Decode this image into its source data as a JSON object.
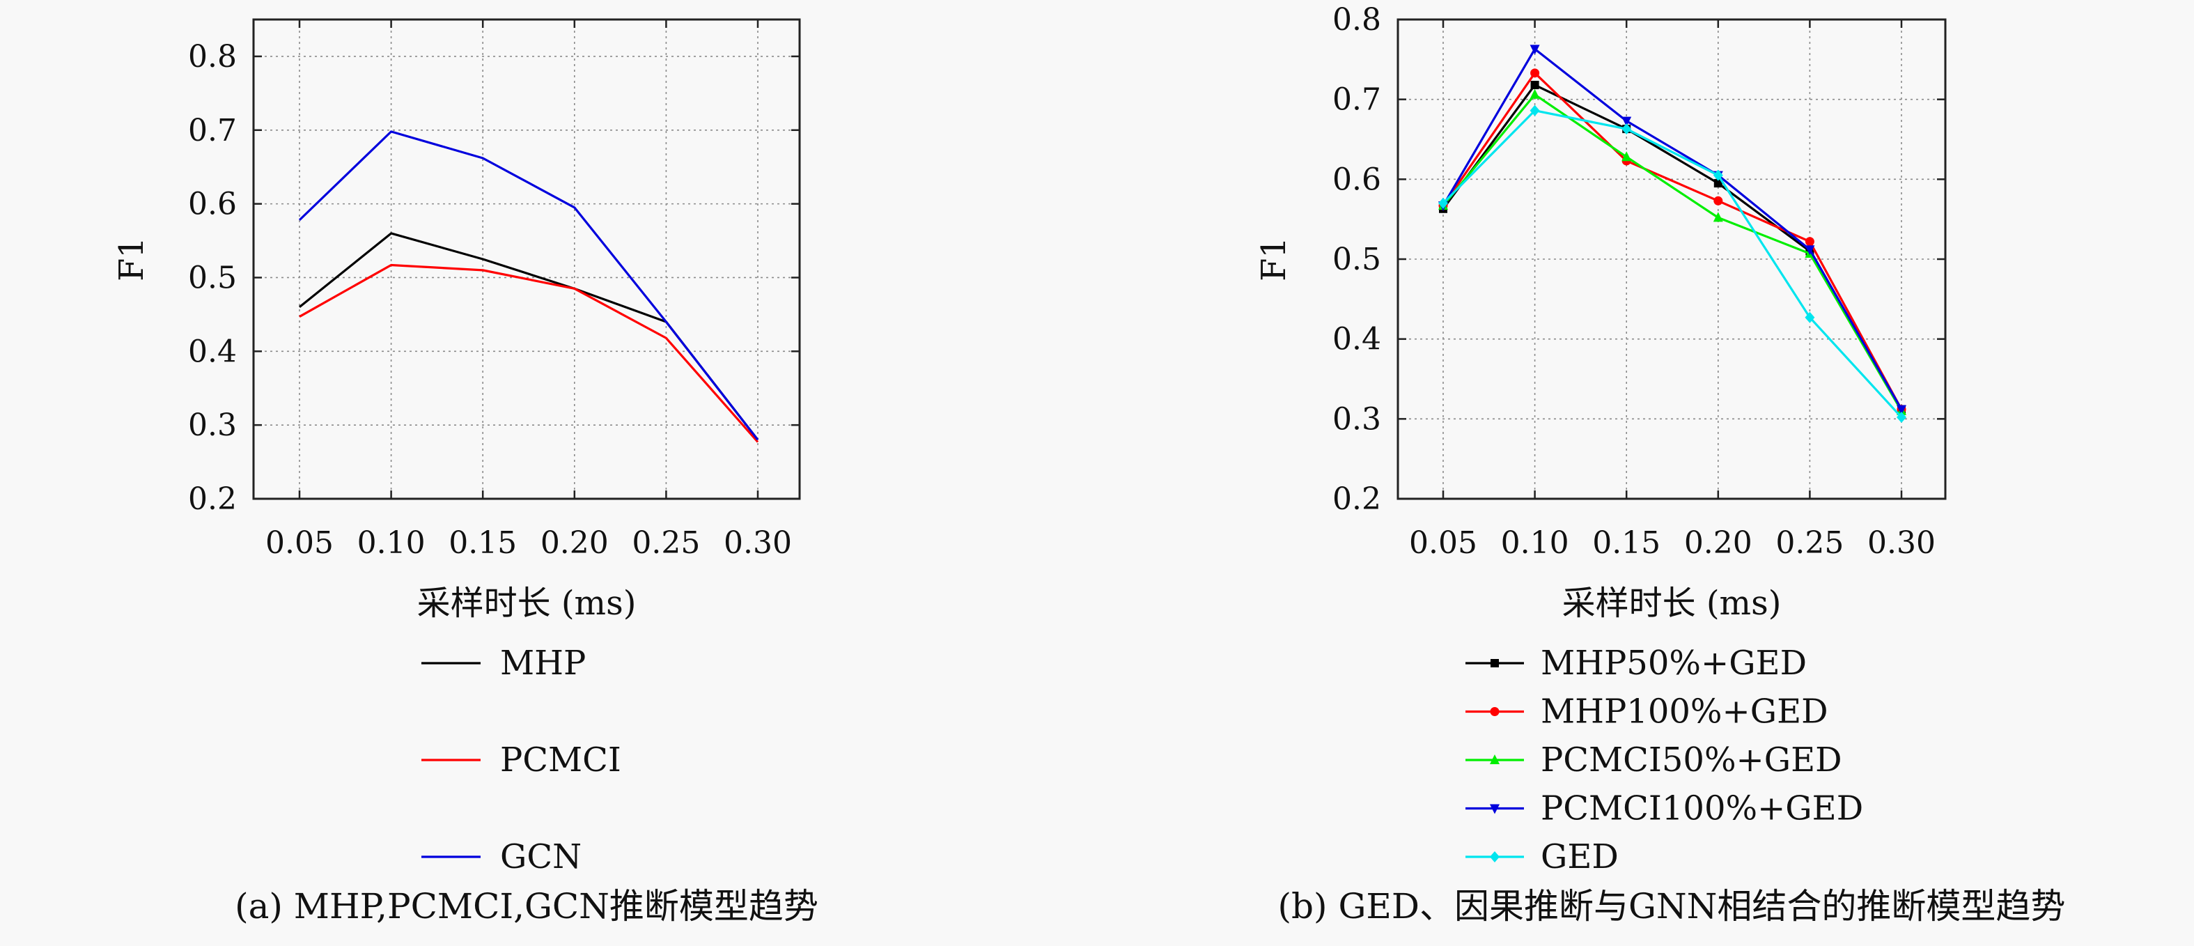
{
  "chart_data": [
    {
      "type": "line",
      "caption": "(a) MHP,PCMCI,GCN推断模型趋势",
      "xlabel": "采样时长 (ms)",
      "ylabel": "F1",
      "x": [
        "0.05",
        "0.10",
        "0.15",
        "0.20",
        "0.25",
        "0.30"
      ],
      "ylim": [
        0.2,
        0.85
      ],
      "yticks": [
        "0.2",
        "0.3",
        "0.4",
        "0.5",
        "0.6",
        "0.7",
        "0.8"
      ],
      "grid": true,
      "legend_position": "below",
      "series": [
        {
          "name": "MHP",
          "color": "#000000",
          "marker": "none",
          "values": [
            0.46,
            0.56,
            0.525,
            0.485,
            0.44,
            0.28
          ]
        },
        {
          "name": "PCMCI",
          "color": "#ff0000",
          "marker": "none",
          "values": [
            0.447,
            0.517,
            0.51,
            0.485,
            0.418,
            0.277
          ]
        },
        {
          "name": "GCN",
          "color": "#0000dd",
          "marker": "none",
          "values": [
            0.578,
            0.698,
            0.662,
            0.595,
            0.44,
            0.28
          ]
        }
      ]
    },
    {
      "type": "line",
      "caption": "(b) GED、因果推断与GNN相结合的推断模型趋势",
      "xlabel": "采样时长 (ms)",
      "ylabel": "F1",
      "x": [
        "0.05",
        "0.10",
        "0.15",
        "0.20",
        "0.25",
        "0.30"
      ],
      "ylim": [
        0.2,
        0.8
      ],
      "yticks": [
        "0.2",
        "0.3",
        "0.4",
        "0.5",
        "0.6",
        "0.7",
        "0.8"
      ],
      "grid": true,
      "legend_position": "below",
      "series": [
        {
          "name": "MHP50%+GED",
          "color": "#000000",
          "marker": "square",
          "values": [
            0.563,
            0.718,
            0.663,
            0.595,
            0.51,
            0.312
          ]
        },
        {
          "name": "MHP100%+GED",
          "color": "#ff0000",
          "marker": "circle",
          "values": [
            0.567,
            0.733,
            0.623,
            0.573,
            0.522,
            0.312
          ]
        },
        {
          "name": "PCMCI50%+GED",
          "color": "#00ee00",
          "marker": "triangle-up",
          "values": [
            0.567,
            0.706,
            0.628,
            0.552,
            0.507,
            0.31
          ]
        },
        {
          "name": "PCMCI100%+GED",
          "color": "#0000dd",
          "marker": "triangle-down",
          "values": [
            0.567,
            0.763,
            0.673,
            0.605,
            0.512,
            0.312
          ]
        },
        {
          "name": "GED",
          "color": "#00e5ee",
          "marker": "diamond",
          "values": [
            0.57,
            0.686,
            0.663,
            0.605,
            0.427,
            0.302
          ]
        }
      ]
    }
  ]
}
